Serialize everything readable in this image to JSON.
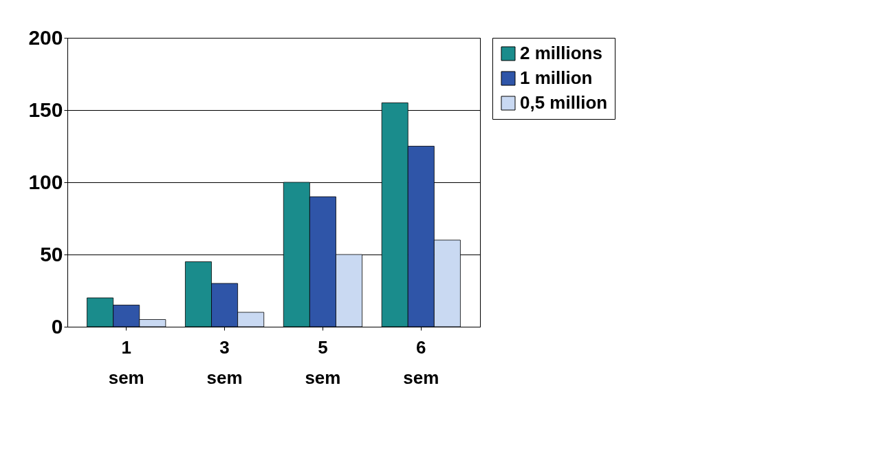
{
  "chart_data": {
    "type": "bar",
    "categories": [
      "1 sem",
      "3 sem",
      "5 sem",
      "6 sem"
    ],
    "series": [
      {
        "name": "2 millions",
        "color": "#1a8c8c",
        "values": [
          20,
          45,
          100,
          155
        ]
      },
      {
        "name": "1 million",
        "color": "#2f55a8",
        "values": [
          15,
          30,
          90,
          125
        ]
      },
      {
        "name": "0,5 million",
        "color": "#c9d9f2",
        "values": [
          5,
          10,
          50,
          60
        ]
      }
    ],
    "ylim": [
      0,
      200
    ],
    "yticks": [
      0,
      50,
      100,
      150,
      200
    ],
    "grid": "y",
    "legend": "right"
  }
}
